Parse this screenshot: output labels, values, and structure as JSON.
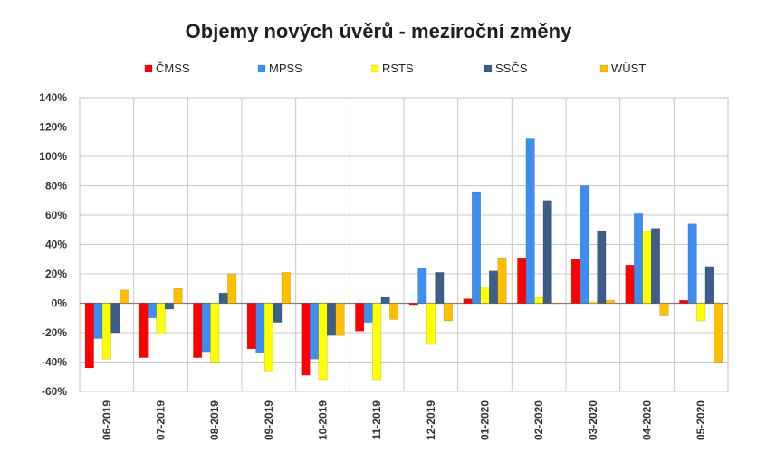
{
  "chart_data": {
    "type": "bar",
    "title": "Objemy nových úvěrů - meziroční změny",
    "xlabel": "",
    "ylabel": "",
    "categories": [
      "06-2019",
      "07-2019",
      "08-2019",
      "09-2019",
      "10-2019",
      "11-2019",
      "12-2019",
      "01-2020",
      "02-2020",
      "03-2020",
      "04-2020",
      "05-2020"
    ],
    "ylim": [
      -60,
      140
    ],
    "yticks": [
      -60,
      -40,
      -20,
      0,
      20,
      40,
      60,
      80,
      100,
      120,
      140
    ],
    "ytick_labels": [
      "-60%",
      "-40%",
      "-20%",
      "0%",
      "20%",
      "40%",
      "60%",
      "80%",
      "100%",
      "120%",
      "140%"
    ],
    "grid": true,
    "legend_position": "top",
    "series": [
      {
        "name": "ČMSS",
        "color": "#ff0000",
        "values": [
          -44,
          -37,
          -37,
          -31,
          -49,
          -19,
          -1,
          3,
          31,
          30,
          26,
          2
        ]
      },
      {
        "name": "MPSS",
        "color": "#3d8ef0",
        "values": [
          -24,
          -10,
          -33,
          -34,
          -38,
          -13,
          24,
          76,
          112,
          80,
          61,
          54
        ]
      },
      {
        "name": "RSTS",
        "color": "#ffff00",
        "values": [
          -38,
          -21,
          -40,
          -46,
          -52,
          -52,
          -28,
          11,
          4,
          1,
          49,
          -12
        ]
      },
      {
        "name": "SSČS",
        "color": "#3c5e88",
        "values": [
          -20,
          -4,
          7,
          -13,
          -22,
          4,
          21,
          22,
          70,
          49,
          51,
          25
        ]
      },
      {
        "name": "WÜST",
        "color": "#ffbf00",
        "values": [
          9,
          10,
          20,
          21,
          -22,
          -11,
          -12,
          31,
          0,
          2,
          -8,
          -40
        ]
      }
    ]
  }
}
